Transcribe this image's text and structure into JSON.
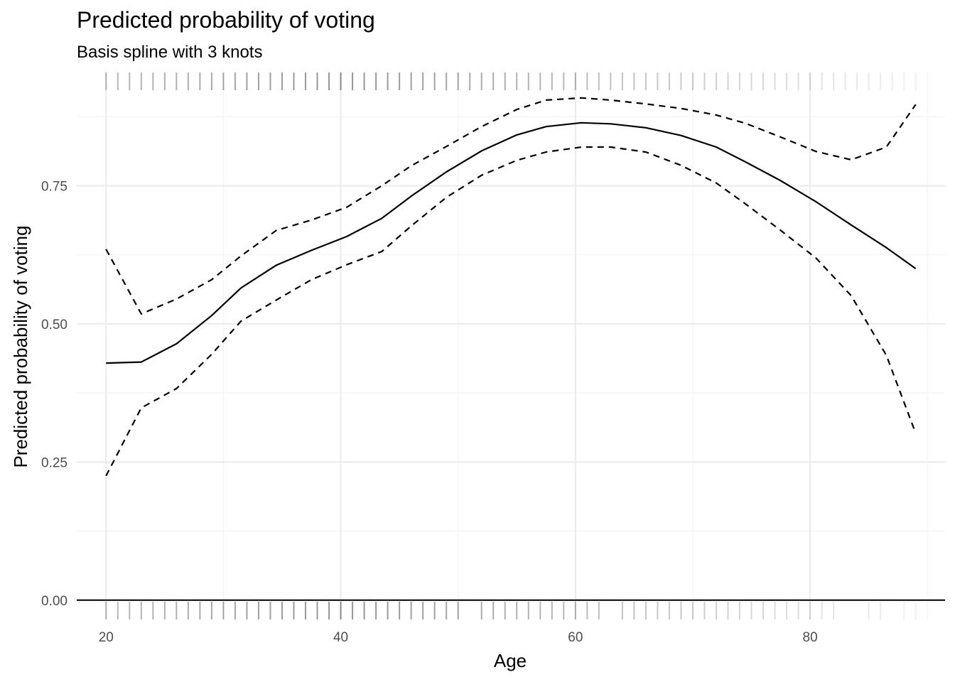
{
  "chart_data": {
    "type": "line",
    "title": "Predicted probability of voting",
    "subtitle": "Basis spline with 3 knots",
    "xlabel": "Age",
    "ylabel": "Predicted probability of voting",
    "xlim": [
      17.5,
      91.5
    ],
    "ylim": [
      -0.035,
      0.955
    ],
    "x_ticks": [
      20,
      40,
      60,
      80
    ],
    "x_tick_labels": [
      "20",
      "40",
      "60",
      "80"
    ],
    "y_ticks": [
      0,
      0.25,
      0.5,
      0.75
    ],
    "y_tick_labels": [
      "0.00",
      "0.25",
      "0.50",
      "0.75"
    ],
    "grid": true,
    "series": [
      {
        "style": "solid",
        "x": [
          20,
          23,
          26,
          29,
          31.5,
          34.5,
          37.5,
          40.5,
          43.5,
          46,
          49,
          52,
          55,
          57.5,
          60.5,
          63,
          66,
          69,
          72,
          74.5,
          77.5,
          80.5,
          83.5,
          86.5,
          89
        ],
        "y": [
          0.429,
          0.431,
          0.464,
          0.515,
          0.565,
          0.606,
          0.633,
          0.658,
          0.691,
          0.731,
          0.775,
          0.813,
          0.842,
          0.857,
          0.864,
          0.862,
          0.855,
          0.841,
          0.82,
          0.793,
          0.759,
          0.721,
          0.679,
          0.638,
          0.6
        ]
      },
      {
        "style": "dashed",
        "x": [
          20,
          23,
          26,
          29,
          31.5,
          34.5,
          37.5,
          40.5,
          43.5,
          46,
          49,
          52,
          55,
          57.5,
          60.5,
          63,
          66,
          69,
          72,
          74.5,
          77.5,
          80.5,
          83.5,
          86.5,
          89
        ],
        "y": [
          0.635,
          0.518,
          0.545,
          0.58,
          0.623,
          0.669,
          0.688,
          0.711,
          0.75,
          0.786,
          0.821,
          0.857,
          0.888,
          0.905,
          0.909,
          0.905,
          0.898,
          0.89,
          0.878,
          0.863,
          0.838,
          0.812,
          0.797,
          0.82,
          0.897
        ]
      },
      {
        "style": "dashed",
        "x": [
          20,
          23,
          26,
          29,
          31.5,
          34.5,
          37.5,
          40.5,
          43.5,
          46,
          49,
          52,
          55,
          57.5,
          60.5,
          63,
          66,
          69,
          72,
          74.5,
          77.5,
          80.5,
          83.5,
          86.5,
          89
        ],
        "y": [
          0.225,
          0.348,
          0.383,
          0.445,
          0.505,
          0.543,
          0.58,
          0.607,
          0.631,
          0.677,
          0.729,
          0.769,
          0.796,
          0.811,
          0.82,
          0.82,
          0.811,
          0.787,
          0.755,
          0.717,
          0.669,
          0.619,
          0.551,
          0.443,
          0.302
        ]
      }
    ],
    "rug_top": [
      20,
      21,
      22,
      23,
      24,
      25,
      26,
      27,
      28,
      29,
      30,
      31,
      32,
      33,
      34,
      35,
      36,
      37,
      38,
      39,
      40,
      41,
      42,
      43,
      44,
      45,
      46,
      47,
      48,
      49,
      50,
      51,
      52,
      53,
      54,
      55,
      56,
      57,
      58,
      59,
      60,
      61,
      62,
      63,
      64,
      65,
      66,
      67,
      68,
      69,
      70,
      71,
      72,
      73,
      74,
      75,
      76,
      77,
      78,
      79,
      80,
      81,
      82,
      83,
      84,
      85,
      86,
      87,
      88,
      89
    ],
    "rug_bottom": [
      20,
      21,
      22,
      23,
      24,
      25,
      26,
      27,
      28,
      29,
      30,
      31,
      32,
      33,
      34,
      35,
      36,
      37,
      38,
      39,
      40,
      41,
      42,
      43,
      44,
      45,
      46,
      47,
      48,
      49,
      50,
      52,
      53,
      54,
      55,
      56,
      57,
      58,
      59,
      60,
      61,
      62,
      64,
      65,
      66,
      67,
      68,
      69,
      70,
      71,
      72,
      73,
      74,
      75,
      76,
      77,
      78,
      79,
      80,
      81,
      82,
      85,
      86,
      88,
      89
    ],
    "colors": {
      "line": "#000000",
      "grid_major": "#ebebeb",
      "grid_minor": "#f4f4f4",
      "rug": "#000000",
      "tick_label": "#4d4d4d"
    }
  }
}
